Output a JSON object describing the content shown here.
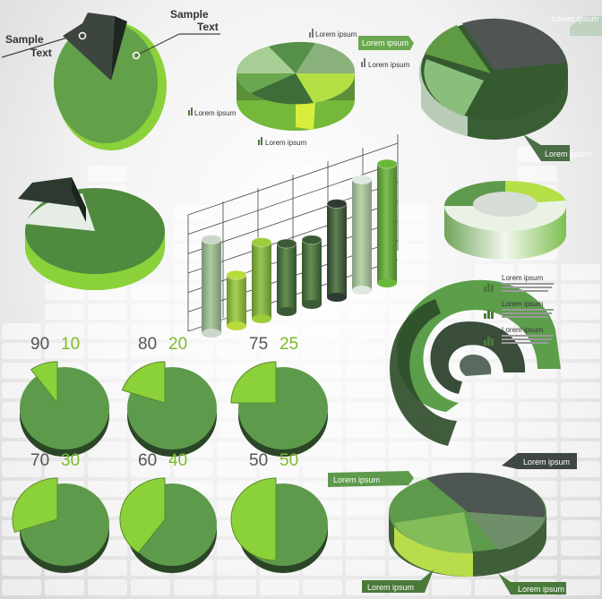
{
  "sample_text": {
    "line1": "Sample",
    "line2": "Text"
  },
  "placeholder": "Lorem ipsum",
  "colors": {
    "dark": "#3a5e34",
    "mid": "#5e9a4c",
    "light": "#8bd13a",
    "lime": "#b3e034",
    "gray": "#4f5651",
    "pale": "#e2ece2"
  },
  "chart_data": [
    {
      "type": "pie",
      "labels": [
        "Sample Text",
        "Sample Text"
      ],
      "values": [
        88,
        12
      ]
    },
    {
      "type": "pie",
      "labels": [
        "Lorem ipsum",
        "Lorem ipsum",
        "Lorem ipsum",
        "Lorem ipsum"
      ],
      "values": [
        22,
        22,
        28,
        28
      ]
    },
    {
      "type": "pie",
      "labels": [
        "Lorem ipsum",
        "Lorem ipsum",
        "Lorem ipsum",
        "Lorem ipsum"
      ],
      "values": [
        26,
        22,
        40,
        12
      ]
    },
    {
      "type": "pie",
      "values": [
        85,
        15
      ]
    },
    {
      "type": "bar",
      "values": [
        55,
        30,
        45,
        40,
        38,
        55,
        65,
        70
      ]
    },
    {
      "type": "pie",
      "labels": [
        "Lorem ipsum",
        "Lorem ipsum",
        "Lorem ipsum"
      ],
      "values": [
        72,
        55,
        40
      ]
    },
    {
      "type": "pie",
      "labels": [
        "Lorem ipsum",
        "Lorem ipsum",
        "Lorem ipsum",
        "Lorem ipsum"
      ],
      "values": [
        30,
        24,
        26,
        20
      ]
    }
  ],
  "ratio_pies": [
    {
      "big": "90",
      "small": "10",
      "values": [
        90,
        10
      ]
    },
    {
      "big": "80",
      "small": "20",
      "values": [
        80,
        20
      ]
    },
    {
      "big": "75",
      "small": "25",
      "values": [
        75,
        25
      ]
    },
    {
      "big": "70",
      "small": "30",
      "values": [
        70,
        30
      ]
    },
    {
      "big": "60",
      "small": "40",
      "values": [
        60,
        40
      ]
    },
    {
      "big": "50",
      "small": "50",
      "values": [
        50,
        50
      ]
    }
  ]
}
